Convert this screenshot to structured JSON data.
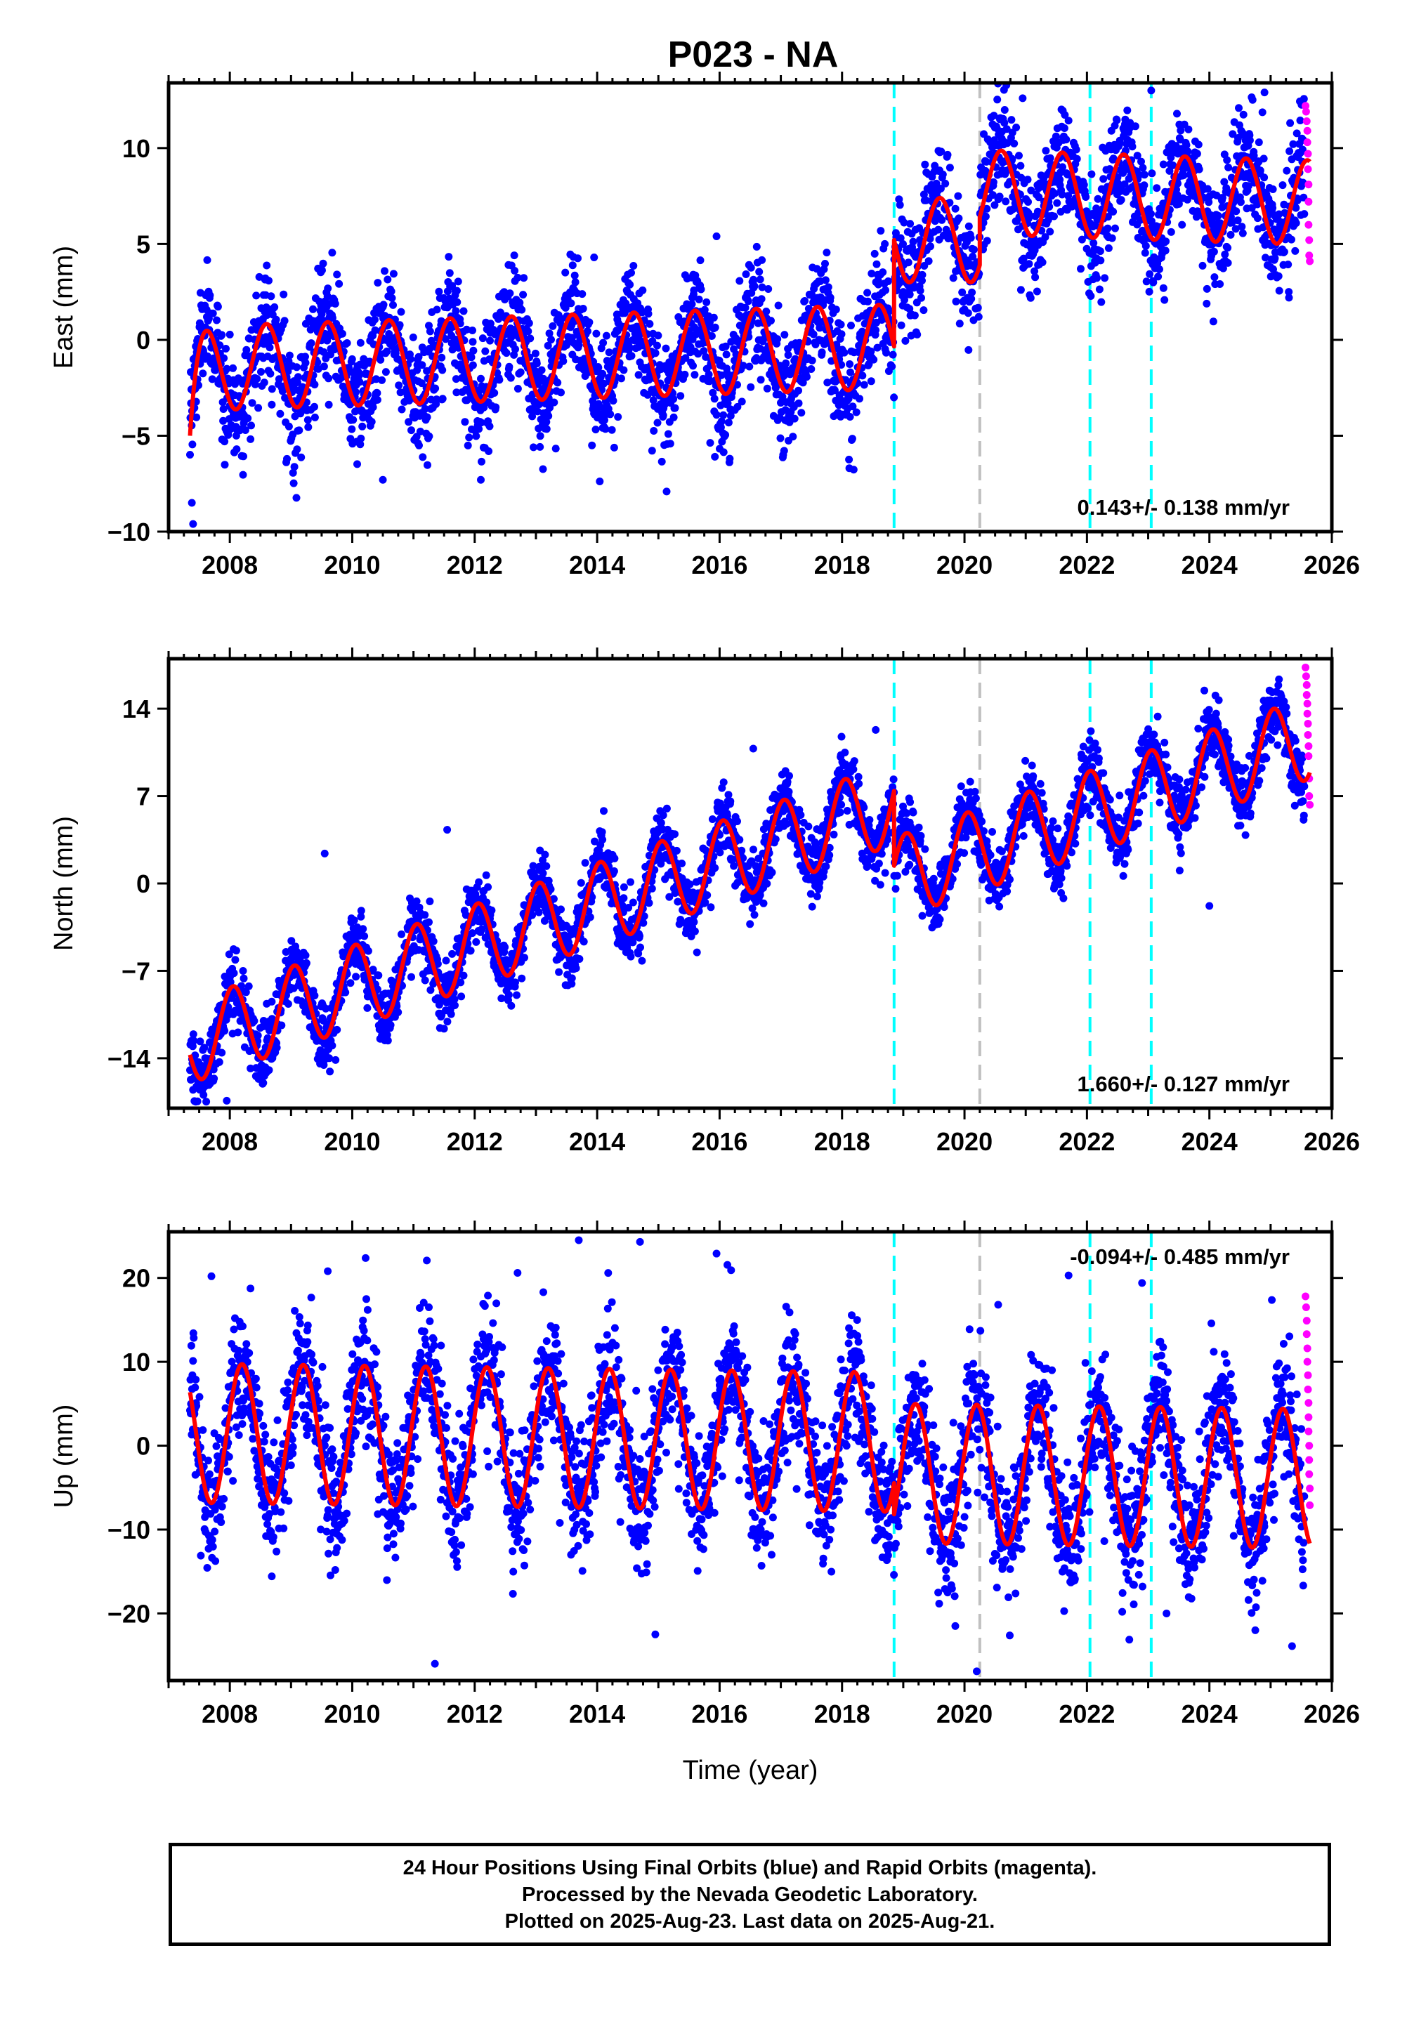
{
  "title": "P023 - NA",
  "footer": {
    "line1": "24 Hour Positions Using Final Orbits (blue) and Rapid Orbits (magenta).",
    "line2": "Processed by the Nevada Geodetic Laboratory.",
    "line3": "Plotted on 2025-Aug-23. Last data on 2025-Aug-21."
  },
  "colors": {
    "final_orbits": "#0000ff",
    "rapid_orbits": "#ff00ff",
    "model": "#ff0000",
    "equipment_change": "#00ffff",
    "other_event": "#c0c0c0"
  },
  "chart_data": [
    {
      "type": "scatter",
      "name": "east",
      "xlabel": "",
      "ylabel": "East (mm)",
      "xlim": [
        2007.0,
        2026.0
      ],
      "ylim": [
        -10.0,
        13.4
      ],
      "xticks": [
        2008,
        2010,
        2012,
        2014,
        2016,
        2018,
        2020,
        2022,
        2024,
        2026
      ],
      "yticks": [
        -10,
        -5,
        0,
        5,
        10
      ],
      "ytick_labels": [
        "−10",
        "−5",
        "0",
        "5",
        "10"
      ],
      "rate_text": "0.143+/- 0.138 mm/yr",
      "data_range": [
        2007.35,
        2025.64
      ],
      "rapid_start": 2025.55,
      "cyan_lines": [
        2018.85,
        2022.05,
        2023.05
      ],
      "gray_lines": [
        2020.25
      ],
      "model": {
        "segments": [
          {
            "start": 2007.35,
            "end": 2018.85,
            "offset": -1.5,
            "rate": 0.1,
            "ref": 2007.35
          },
          {
            "start": 2018.85,
            "end": 2020.25,
            "offset": 5.2,
            "rate": 0.0,
            "ref": 2018.85
          },
          {
            "start": 2020.25,
            "end": 2025.64,
            "offset": 7.7,
            "rate": -0.1,
            "ref": 2020.25
          }
        ],
        "amplitude": 2.2,
        "phase_year": 0.1,
        "initial_transient": {
          "amplitude": -3.5,
          "tau": 0.1
        }
      },
      "scatter_sigma": 1.5,
      "outliers": [
        {
          "x": 2007.4,
          "y": -9.6
        },
        {
          "x": 2007.38,
          "y": -8.5
        },
        {
          "x": 2010.5,
          "y": -7.3
        },
        {
          "x": 2012.1,
          "y": -7.3
        },
        {
          "x": 2013.95,
          "y": 4.3
        },
        {
          "x": 2015.95,
          "y": 5.4
        },
        {
          "x": 2020.95,
          "y": 12.6
        },
        {
          "x": 2023.05,
          "y": 13.0
        },
        {
          "x": 2024.9,
          "y": 12.9
        },
        {
          "x": 2023.25,
          "y": 2.7
        },
        {
          "x": 2021.2,
          "y": 3.9
        },
        {
          "x": 2019.0,
          "y": 2.5
        },
        {
          "x": 2025.3,
          "y": 2.2
        }
      ],
      "rapid_points": [
        {
          "x": 2025.57,
          "y": 12.2
        },
        {
          "x": 2025.58,
          "y": 11.9
        },
        {
          "x": 2025.59,
          "y": 11.4
        },
        {
          "x": 2025.6,
          "y": 10.9
        },
        {
          "x": 2025.6,
          "y": 10.3
        },
        {
          "x": 2025.61,
          "y": 9.7
        },
        {
          "x": 2025.61,
          "y": 8.9
        },
        {
          "x": 2025.62,
          "y": 8.1
        },
        {
          "x": 2025.62,
          "y": 7.2
        },
        {
          "x": 2025.62,
          "y": 6.0
        },
        {
          "x": 2025.63,
          "y": 5.2
        },
        {
          "x": 2025.63,
          "y": 4.4
        },
        {
          "x": 2025.64,
          "y": 4.1
        }
      ]
    },
    {
      "type": "scatter",
      "name": "north",
      "xlabel": "",
      "ylabel": "North (mm)",
      "xlim": [
        2007.0,
        2026.0
      ],
      "ylim": [
        -18.0,
        18.0
      ],
      "xticks": [
        2008,
        2010,
        2012,
        2014,
        2016,
        2018,
        2020,
        2022,
        2024,
        2026
      ],
      "yticks": [
        -14,
        -7,
        0,
        7,
        14
      ],
      "ytick_labels": [
        "−14",
        "−7",
        "0",
        "7",
        "14"
      ],
      "rate_text": "1.660+/- 0.127 mm/yr",
      "data_range": [
        2007.35,
        2025.64
      ],
      "rapid_start": 2025.55,
      "cyan_lines": [
        2018.85,
        2022.05,
        2023.05
      ],
      "gray_lines": [
        2020.25
      ],
      "model": {
        "segments": [
          {
            "start": 2007.35,
            "end": 2018.85,
            "offset": -12.7,
            "rate": 1.66,
            "ref": 2007.35
          },
          {
            "start": 2018.85,
            "end": 2025.64,
            "offset": 0.4,
            "rate": 1.66,
            "ref": 2018.85
          }
        ],
        "amplitude": 3.3,
        "phase_year": 0.55,
        "initial_transient": {
          "amplitude": 0.0,
          "tau": 0.1
        }
      },
      "scatter_sigma": 1.3,
      "outliers": [
        {
          "x": 2007.95,
          "y": -17.4
        },
        {
          "x": 2018.55,
          "y": 12.3
        },
        {
          "x": 2024.0,
          "y": -1.8
        },
        {
          "x": 2016.55,
          "y": 10.8
        },
        {
          "x": 2011.55,
          "y": 4.3
        },
        {
          "x": 2009.55,
          "y": 2.4
        },
        {
          "x": 2025.2,
          "y": 13.2
        }
      ],
      "rapid_points": [
        {
          "x": 2025.57,
          "y": 17.3
        },
        {
          "x": 2025.58,
          "y": 16.6
        },
        {
          "x": 2025.59,
          "y": 15.9
        },
        {
          "x": 2025.59,
          "y": 15.1
        },
        {
          "x": 2025.6,
          "y": 14.4
        },
        {
          "x": 2025.6,
          "y": 13.6
        },
        {
          "x": 2025.61,
          "y": 12.8
        },
        {
          "x": 2025.61,
          "y": 11.9
        },
        {
          "x": 2025.62,
          "y": 11.0
        },
        {
          "x": 2025.62,
          "y": 10.2
        },
        {
          "x": 2025.63,
          "y": 8.4
        },
        {
          "x": 2025.63,
          "y": 7.0
        },
        {
          "x": 2025.64,
          "y": 6.3
        }
      ]
    },
    {
      "type": "scatter",
      "name": "up",
      "xlabel": "Time (year)",
      "ylabel": "Up (mm)",
      "xlim": [
        2007.0,
        2026.0
      ],
      "ylim": [
        -28.0,
        25.5
      ],
      "xticks": [
        2008,
        2010,
        2012,
        2014,
        2016,
        2018,
        2020,
        2022,
        2024,
        2026
      ],
      "yticks": [
        -20,
        -10,
        0,
        10,
        20
      ],
      "ytick_labels": [
        "−20",
        "−10",
        "0",
        "10",
        "20"
      ],
      "rate_text": "-0.094+/- 0.485 mm/yr",
      "data_range": [
        2007.35,
        2025.64
      ],
      "rapid_start": 2025.55,
      "cyan_lines": [
        2018.85,
        2022.05,
        2023.05
      ],
      "gray_lines": [
        2020.25
      ],
      "model": {
        "segments": [
          {
            "start": 2007.35,
            "end": 2018.85,
            "offset": 1.5,
            "rate": -0.094,
            "ref": 2007.35
          },
          {
            "start": 2018.85,
            "end": 2025.64,
            "offset": -3.3,
            "rate": -0.094,
            "ref": 2018.85
          }
        ],
        "amplitude": 8.3,
        "phase_year": 0.7,
        "initial_transient": {
          "amplitude": 0.0,
          "tau": 0.1
        }
      },
      "scatter_sigma": 4.0,
      "outliers": [
        {
          "x": 2011.35,
          "y": -26.0
        },
        {
          "x": 2013.7,
          "y": 24.5
        },
        {
          "x": 2014.7,
          "y": 24.3
        },
        {
          "x": 2015.95,
          "y": 22.9
        },
        {
          "x": 2014.95,
          "y": -22.5
        },
        {
          "x": 2020.2,
          "y": -26.9
        },
        {
          "x": 2019.85,
          "y": -21.5
        },
        {
          "x": 2021.7,
          "y": 20.3
        },
        {
          "x": 2022.9,
          "y": 19.4
        },
        {
          "x": 2009.6,
          "y": 20.8
        },
        {
          "x": 2012.7,
          "y": 20.6
        },
        {
          "x": 2023.3,
          "y": -20.0
        },
        {
          "x": 2025.35,
          "y": -23.9
        },
        {
          "x": 2024.75,
          "y": -22.0
        },
        {
          "x": 2007.7,
          "y": 20.2
        },
        {
          "x": 2020.55,
          "y": 16.8
        }
      ],
      "rapid_points": [
        {
          "x": 2025.57,
          "y": 17.8
        },
        {
          "x": 2025.58,
          "y": 16.5
        },
        {
          "x": 2025.59,
          "y": 14.9
        },
        {
          "x": 2025.59,
          "y": 13.3
        },
        {
          "x": 2025.6,
          "y": 11.6
        },
        {
          "x": 2025.6,
          "y": 10.0
        },
        {
          "x": 2025.61,
          "y": 8.4
        },
        {
          "x": 2025.61,
          "y": 6.7
        },
        {
          "x": 2025.62,
          "y": 5.1
        },
        {
          "x": 2025.62,
          "y": 3.4
        },
        {
          "x": 2025.62,
          "y": 1.7
        },
        {
          "x": 2025.63,
          "y": 0.0
        },
        {
          "x": 2025.63,
          "y": -1.7
        },
        {
          "x": 2025.63,
          "y": -3.4
        },
        {
          "x": 2025.64,
          "y": -5.1
        },
        {
          "x": 2025.64,
          "y": -7.1
        }
      ]
    }
  ]
}
